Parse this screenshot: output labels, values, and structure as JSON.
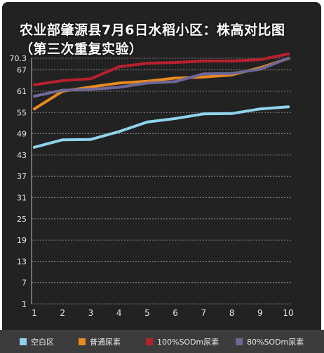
{
  "chart_data": {
    "type": "line",
    "title": "农业部肇源县7月6日水稻小区：株高对比图（第三次重复实验）",
    "title_lines": [
      "农业部肇源县7月6日水稻小区：株高对比图",
      "（第三次重复实验）"
    ],
    "x": [
      1,
      2,
      3,
      4,
      5,
      6,
      7,
      8,
      9,
      10
    ],
    "y_ticks": [
      "70.3",
      "67",
      "61",
      "55",
      "49",
      "43",
      "37",
      "31",
      "25",
      "19",
      "13",
      "7",
      "1"
    ],
    "y_tick_values": [
      70.3,
      67,
      61,
      55,
      49,
      43,
      37,
      31,
      25,
      19,
      13,
      7,
      1
    ],
    "ylim": [
      1,
      70.3
    ],
    "grid": true,
    "legend_position": "bottom",
    "series": [
      {
        "name": "空白区",
        "color": "#8fd3ec",
        "values": [
          45.2,
          47.3,
          47.4,
          49.6,
          52.3,
          53.3,
          54.6,
          54.7,
          56.0,
          56.6
        ]
      },
      {
        "name": "普通尿素",
        "color": "#e8891f",
        "values": [
          56.0,
          61.0,
          62.2,
          63.3,
          63.8,
          64.7,
          65.0,
          65.6,
          67.6,
          70.2
        ]
      },
      {
        "name": "100%SODm尿素",
        "color": "#b8202e",
        "values": [
          62.8,
          64.0,
          64.5,
          67.9,
          68.9,
          69.1,
          69.5,
          69.5,
          69.9,
          71.5
        ]
      },
      {
        "name": "80%SODm尿素",
        "color": "#6e6898",
        "values": [
          59.6,
          61.3,
          61.5,
          62.1,
          63.3,
          63.7,
          65.9,
          66.0,
          67.2,
          70.3
        ]
      }
    ]
  }
}
